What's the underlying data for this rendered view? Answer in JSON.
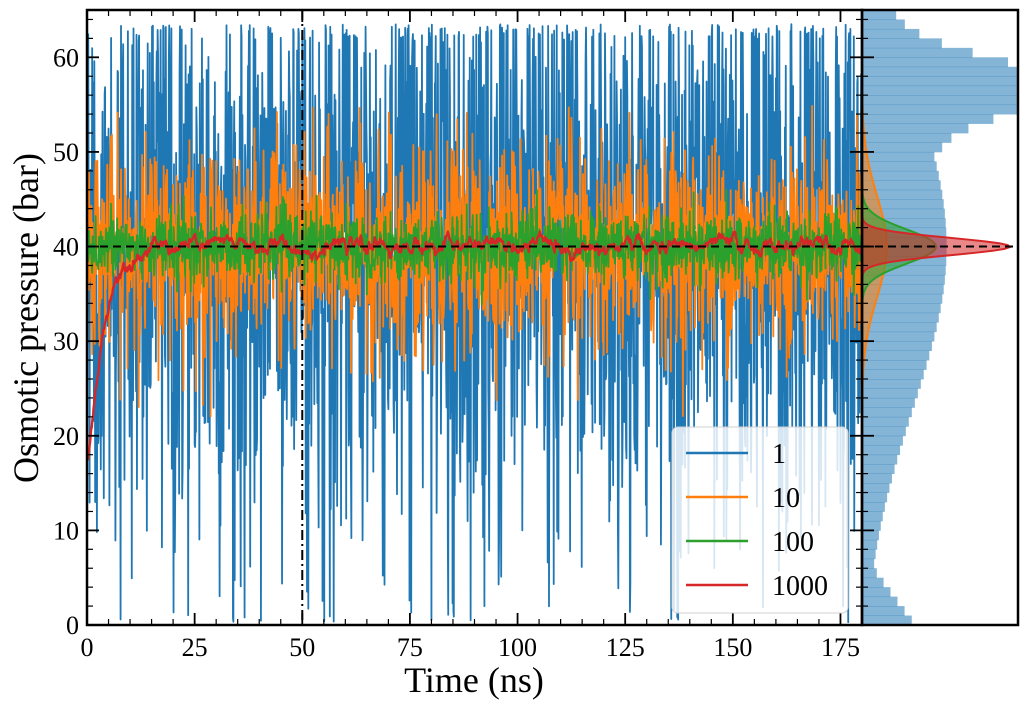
{
  "chart_data": {
    "type": "line",
    "xlabel": "Time (ns)",
    "ylabel": "Osmotic pressure (bar)",
    "xlim": [
      0,
      180
    ],
    "ylim": [
      0,
      65
    ],
    "x_ticks": [
      0,
      25,
      50,
      75,
      100,
      125,
      150,
      175
    ],
    "y_ticks": [
      0,
      10,
      20,
      30,
      40,
      50,
      60
    ],
    "reference_line": {
      "y": 40,
      "style": "dashed",
      "color": "#000000"
    },
    "vertical_line": {
      "x": 50,
      "style": "dashdot",
      "color": "#000000"
    },
    "legend": {
      "placement": "bottom-right"
    },
    "series": [
      {
        "name": "1",
        "color": "#1f77b4",
        "mean": 40,
        "std": 17,
        "lower_clip": 0,
        "upper_max": 63.5,
        "note_equilibration": false
      },
      {
        "name": "10",
        "color": "#ff7f0e",
        "mean": 40,
        "std": 5.4,
        "lower_clip": 22,
        "upper_max": 55
      },
      {
        "name": "100",
        "color": "#2ca02c",
        "mean": 40,
        "std": 1.8,
        "lower_clip": 33,
        "upper_max": 46
      },
      {
        "name": "1000",
        "color": "#d62728",
        "mean": 40,
        "std": 0.9,
        "start_value": 18,
        "upper_max": 43
      }
    ],
    "marginal_histograms": [
      {
        "series": "1",
        "color": "#1f77b4",
        "mean": 40,
        "std": 17,
        "peak_y": 57
      },
      {
        "series": "10",
        "color": "#ff7f0e",
        "mean": 40,
        "std": 5.4
      },
      {
        "series": "100",
        "color": "#2ca02c",
        "mean": 40,
        "std": 1.8
      },
      {
        "series": "1000",
        "color": "#d62728",
        "mean": 40,
        "std": 0.9
      }
    ]
  }
}
